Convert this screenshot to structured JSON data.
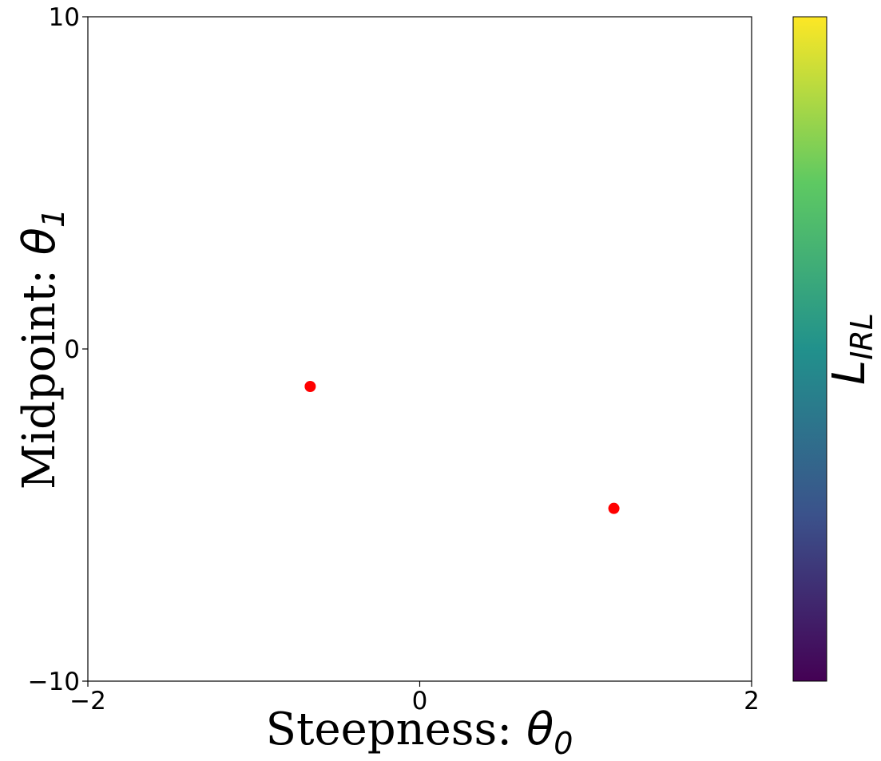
{
  "chart_data": {
    "type": "scatter",
    "title": "",
    "xlabel": {
      "text": "Steepness: ",
      "symbol": "θ",
      "subscript": "0"
    },
    "ylabel": {
      "text": "Midpoint: ",
      "symbol": "θ",
      "subscript": "1"
    },
    "xlim": [
      -2,
      2
    ],
    "ylim": [
      -10,
      10
    ],
    "x_ticks": [
      {
        "value": -2,
        "label": "−2"
      },
      {
        "value": 0,
        "label": "0"
      },
      {
        "value": 2,
        "label": "2"
      }
    ],
    "y_ticks": [
      {
        "value": -10,
        "label": "−10"
      },
      {
        "value": 0,
        "label": "0"
      },
      {
        "value": 10,
        "label": "10"
      }
    ],
    "grid": false,
    "series": [
      {
        "color": "#ff0000",
        "points": [
          {
            "x": -0.66,
            "y": -1.13
          },
          {
            "x": 1.17,
            "y": -4.8
          }
        ]
      }
    ],
    "colorbar": {
      "label": {
        "symbol": "L",
        "subscript": "IRL"
      },
      "colormap": "viridis",
      "colors": [
        "#440154",
        "#3b528b",
        "#21918c",
        "#5ec962",
        "#fde725"
      ]
    }
  }
}
